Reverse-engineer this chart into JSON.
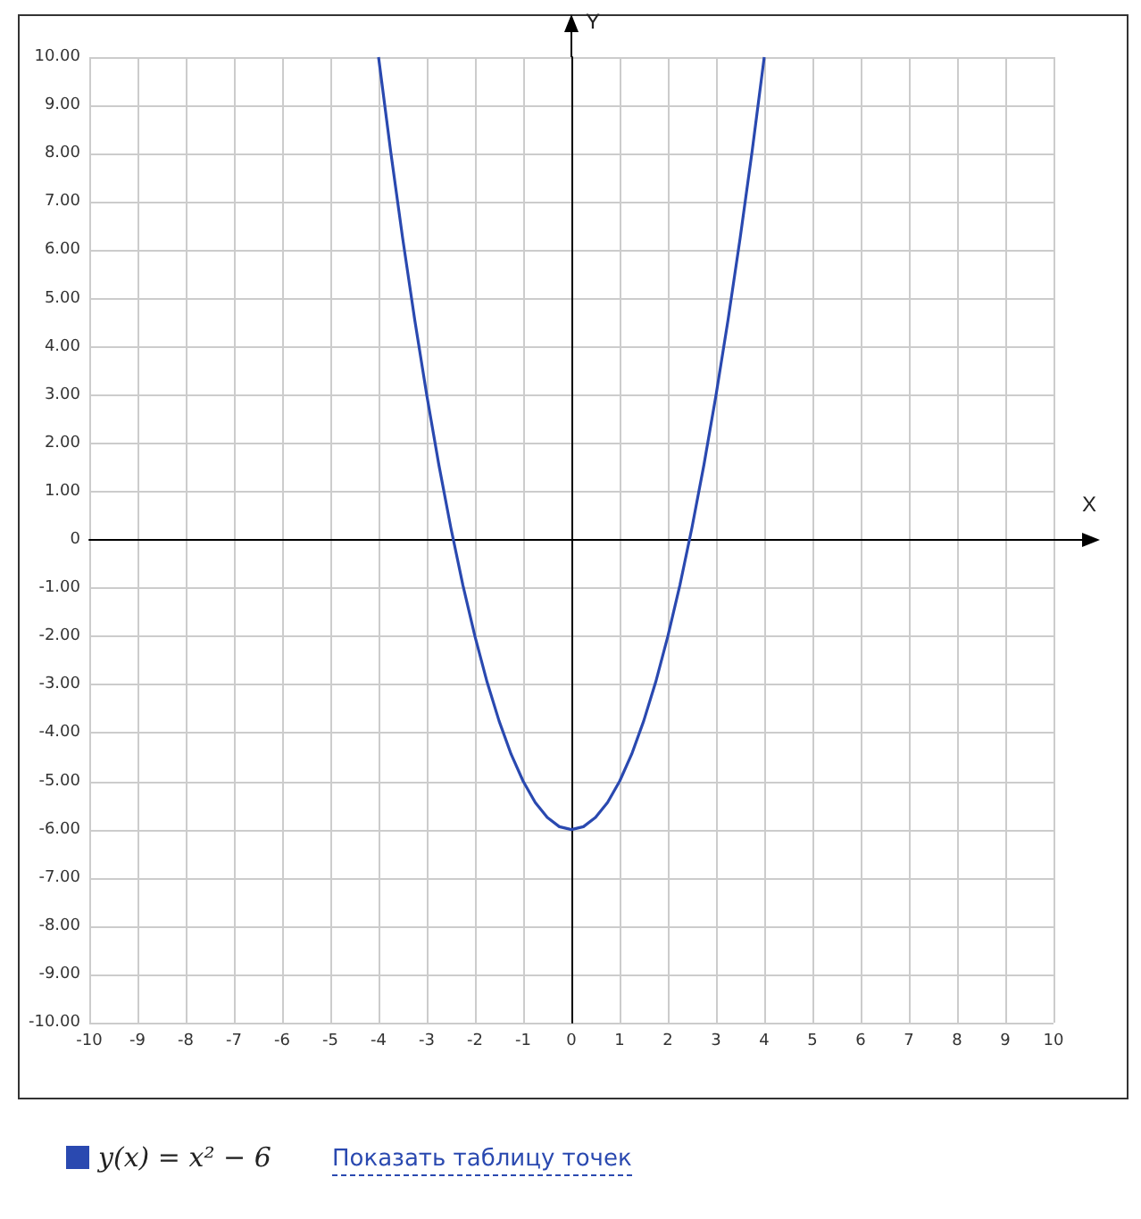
{
  "chart_data": {
    "type": "line",
    "xlabel": "X",
    "ylabel": "Y",
    "x": [
      -4,
      -3.75,
      -3.5,
      -3.25,
      -3,
      -2.75,
      -2.5,
      -2.25,
      -2,
      -1.75,
      -1.5,
      -1.25,
      -1,
      -0.75,
      -0.5,
      -0.25,
      0,
      0.25,
      0.5,
      0.75,
      1,
      1.25,
      1.5,
      1.75,
      2,
      2.25,
      2.5,
      2.75,
      3,
      3.25,
      3.5,
      3.75,
      4
    ],
    "series": [
      {
        "name": "y(x) = x² − 6",
        "color": "#2a49b0",
        "values": [
          10,
          8.06,
          6.25,
          4.56,
          3,
          1.56,
          0.25,
          -0.94,
          -2,
          -2.94,
          -3.75,
          -4.44,
          -5,
          -5.44,
          -5.75,
          -5.94,
          -6,
          -5.94,
          -5.75,
          -5.44,
          -5,
          -4.44,
          -3.75,
          -2.94,
          -2,
          -0.94,
          0.25,
          1.56,
          3,
          4.56,
          6.25,
          8.06,
          10
        ]
      }
    ],
    "xlim": [
      -10,
      10
    ],
    "ylim": [
      -10,
      10
    ],
    "xticks": [
      -10,
      -9,
      -8,
      -7,
      -6,
      -5,
      -4,
      -3,
      -2,
      -1,
      0,
      1,
      2,
      3,
      4,
      5,
      6,
      7,
      8,
      9,
      10
    ],
    "yticks": [
      {
        "value": -10,
        "label": "-10.00"
      },
      {
        "value": -9,
        "label": "-9.00"
      },
      {
        "value": -8,
        "label": "-8.00"
      },
      {
        "value": -7,
        "label": "-7.00"
      },
      {
        "value": -6,
        "label": "-6.00"
      },
      {
        "value": -5,
        "label": "-5.00"
      },
      {
        "value": -4,
        "label": "-4.00"
      },
      {
        "value": -3,
        "label": "-3.00"
      },
      {
        "value": -2,
        "label": "-2.00"
      },
      {
        "value": -1,
        "label": "-1.00"
      },
      0,
      {
        "value": 1,
        "label": "1.00"
      },
      {
        "value": 2,
        "label": "2.00"
      },
      {
        "value": 3,
        "label": "3.00"
      },
      {
        "value": 4,
        "label": "4.00"
      },
      {
        "value": 5,
        "label": "5.00"
      },
      {
        "value": 6,
        "label": "6.00"
      },
      {
        "value": 7,
        "label": "7.00"
      },
      {
        "value": 8,
        "label": "8.00"
      },
      {
        "value": 9,
        "label": "9.00"
      },
      {
        "value": 10,
        "label": "10.00"
      }
    ],
    "grid": true,
    "legend": "bottom left",
    "marker": "none",
    "line_style": "solid",
    "annotations": [
      "Показать таблицу точек"
    ]
  }
}
